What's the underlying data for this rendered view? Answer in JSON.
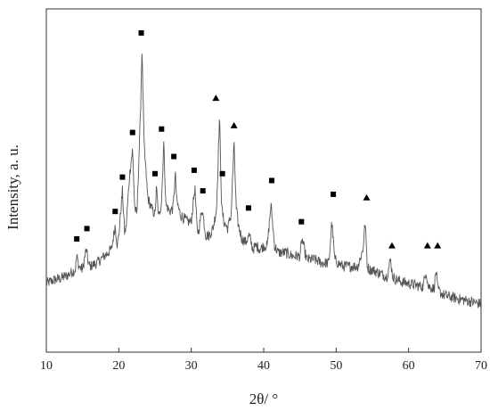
{
  "chart_data": {
    "type": "line",
    "title": "",
    "xlabel": "2θ/ °",
    "ylabel": "Intensity, a. u.",
    "xlim": [
      10,
      70
    ],
    "ylim": [
      0,
      100
    ],
    "xticks": [
      10,
      20,
      30,
      40,
      50,
      60,
      70
    ],
    "yticks_shown": false,
    "grid": false,
    "legend": "none",
    "line_color": "#555555",
    "marker_color": "#000000",
    "series": [
      {
        "x": [
          10,
          11,
          12,
          13,
          14,
          14.2,
          14.5,
          15,
          15.5,
          15.8,
          16,
          16.5,
          17,
          18,
          19,
          19.5,
          19.8,
          20,
          20.5,
          20.8,
          21,
          21.5,
          21.9,
          22.2,
          22.5,
          23,
          23.2,
          23.5,
          24,
          24.5,
          25,
          25.2,
          25.5,
          25.9,
          26.2,
          26.5,
          27,
          27.5,
          27.8,
          28,
          28.5,
          29,
          29.5,
          30,
          30.5,
          30.8,
          31,
          31.5,
          32,
          32.5,
          33,
          33.5,
          33.9,
          34.2,
          34.5,
          35,
          35.5,
          35.9,
          36.2,
          36.5,
          37,
          37.5,
          38,
          38.5,
          39,
          39.5,
          40,
          40.5,
          41,
          41.5,
          42,
          43,
          44,
          45,
          45.3,
          45.8,
          46,
          47,
          48,
          49,
          49.4,
          49.8,
          50.2,
          51,
          52,
          53,
          53.7,
          54,
          54.3,
          54.6,
          55,
          56,
          57,
          57.5,
          57.8,
          58,
          58.5,
          59,
          60,
          61,
          62,
          62.4,
          62.7,
          63,
          63.5,
          63.8,
          64,
          64.3,
          64.6,
          65,
          66,
          67,
          68,
          69,
          70
        ],
        "y": [
          20,
          21,
          21.5,
          22.5,
          24,
          28,
          25,
          24,
          30,
          26,
          25,
          25.5,
          26,
          28,
          30,
          37,
          31,
          34,
          47,
          35,
          36,
          52,
          59,
          42,
          40,
          70,
          88,
          60,
          45,
          42,
          40,
          48,
          39,
          44,
          61,
          43,
          41,
          42,
          52,
          44,
          40,
          39,
          38,
          38,
          48,
          36,
          35,
          42,
          34,
          34,
          36,
          42,
          69,
          42,
          38,
          36,
          40,
          61,
          42,
          37,
          33,
          32,
          34,
          30,
          31,
          30,
          31,
          31,
          43,
          31,
          29,
          29,
          28,
          28,
          33,
          28,
          27,
          27,
          26,
          26,
          38,
          27,
          26,
          25,
          25,
          25,
          30,
          38,
          25,
          24,
          24,
          23,
          22,
          27,
          22,
          21.5,
          21,
          20.5,
          20,
          19.5,
          19,
          24,
          19,
          19,
          18.5,
          24,
          18.5,
          17.5,
          17,
          16.5,
          16,
          15.5,
          15,
          14.5,
          14
        ]
      }
    ],
    "annotations": [
      {
        "marker": "■",
        "x": 14.2,
        "y": 33
      },
      {
        "marker": "■",
        "x": 15.6,
        "y": 36
      },
      {
        "marker": "■",
        "x": 19.5,
        "y": 41
      },
      {
        "marker": "■",
        "x": 20.5,
        "y": 51
      },
      {
        "marker": "■",
        "x": 21.9,
        "y": 64
      },
      {
        "marker": "■",
        "x": 23.1,
        "y": 93
      },
      {
        "marker": "■",
        "x": 25.0,
        "y": 52
      },
      {
        "marker": "■",
        "x": 25.9,
        "y": 65
      },
      {
        "marker": "■",
        "x": 27.6,
        "y": 57
      },
      {
        "marker": "■",
        "x": 30.4,
        "y": 53
      },
      {
        "marker": "■",
        "x": 31.6,
        "y": 47
      },
      {
        "marker": "▲",
        "x": 33.4,
        "y": 74
      },
      {
        "marker": "■",
        "x": 34.3,
        "y": 52
      },
      {
        "marker": "▲",
        "x": 35.9,
        "y": 66
      },
      {
        "marker": "■",
        "x": 37.9,
        "y": 42
      },
      {
        "marker": "■",
        "x": 41.1,
        "y": 50
      },
      {
        "marker": "■",
        "x": 45.2,
        "y": 38
      },
      {
        "marker": "■",
        "x": 49.6,
        "y": 46
      },
      {
        "marker": "▲",
        "x": 54.2,
        "y": 45
      },
      {
        "marker": "▲",
        "x": 57.7,
        "y": 31
      },
      {
        "marker": "▲",
        "x": 62.6,
        "y": 31
      },
      {
        "marker": "▲",
        "x": 64.0,
        "y": 31
      }
    ]
  }
}
